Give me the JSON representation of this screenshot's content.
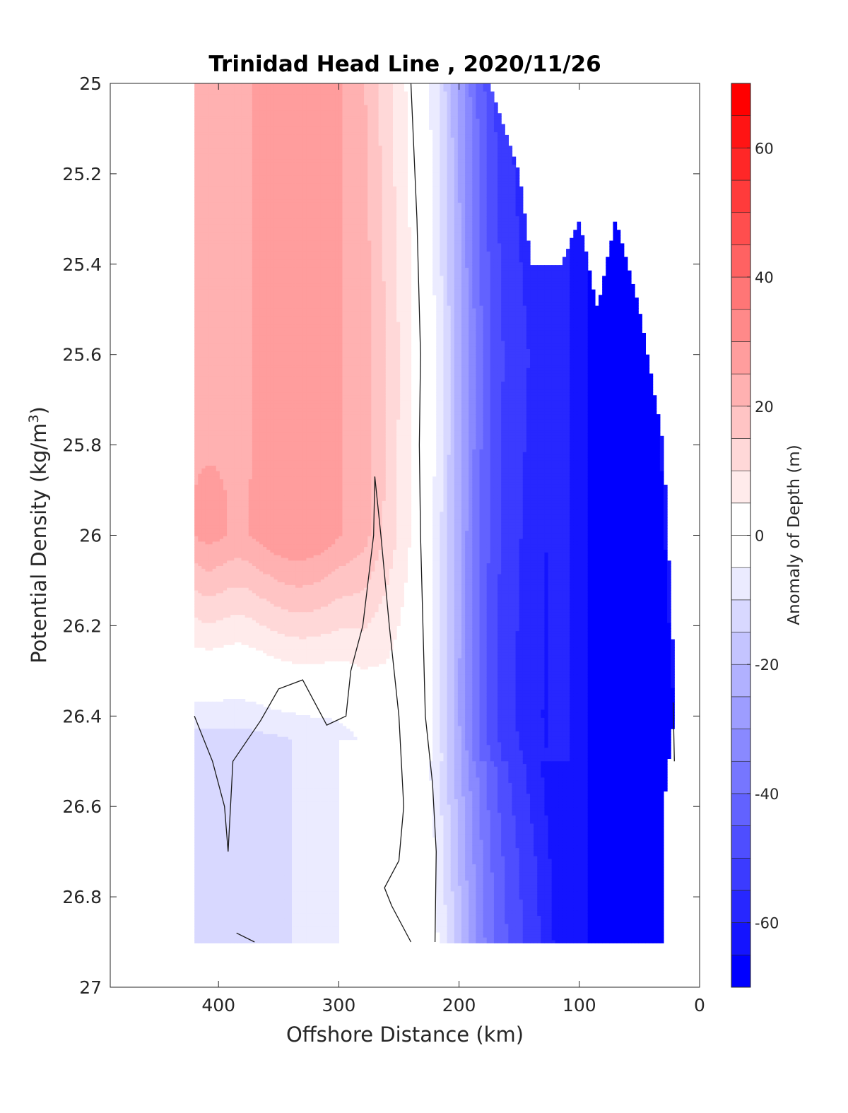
{
  "chart_data": {
    "type": "contour",
    "title": "Trinidad Head Line , 2020/11/26",
    "xlabel": "Offshore Distance (km)",
    "ylabel_main": "Potential Density (kg/m",
    "ylabel_sup": "3",
    "ylabel_close": ")",
    "xlim": [
      490,
      0
    ],
    "ylim": [
      25,
      27
    ],
    "x_reversed": true,
    "y_reversed": true,
    "xticks": [
      400,
      300,
      200,
      100,
      0
    ],
    "yticks": [
      25,
      25.2,
      25.4,
      25.6,
      25.8,
      26,
      26.2,
      26.4,
      26.6,
      26.8,
      27
    ],
    "ytick_labels": [
      "25",
      "25.2",
      "25.4",
      "25.6",
      "25.8",
      "26",
      "26.2",
      "26.4",
      "26.6",
      "26.8",
      "27"
    ],
    "colorbar": {
      "label": "Anomaly of Depth (m)",
      "range": [
        -70,
        70
      ],
      "step": 5,
      "ticks": [
        -60,
        -40,
        -20,
        0,
        20,
        40,
        60
      ]
    },
    "zero_contour_lines": [
      [
        [
          240,
          25
        ],
        [
          235,
          25.3
        ],
        [
          232,
          25.6
        ],
        [
          233,
          25.8
        ],
        [
          232,
          26
        ],
        [
          230,
          26.2
        ],
        [
          228,
          26.4
        ],
        [
          222,
          26.55
        ],
        [
          219,
          26.7
        ],
        [
          220,
          26.9
        ]
      ],
      [
        [
          270,
          25.87
        ],
        [
          271,
          26
        ],
        [
          280,
          26.2
        ],
        [
          290,
          26.3
        ],
        [
          294,
          26.4
        ],
        [
          310,
          26.42
        ],
        [
          330,
          26.32
        ],
        [
          350,
          26.34
        ],
        [
          365,
          26.41
        ],
        [
          388,
          26.5
        ],
        [
          390,
          26.6
        ],
        [
          392,
          26.7
        ],
        [
          395,
          26.6
        ],
        [
          405,
          26.5
        ],
        [
          420,
          26.4
        ]
      ],
      [
        [
          270,
          25.87
        ],
        [
          265,
          26
        ],
        [
          258,
          26.2
        ],
        [
          250,
          26.4
        ],
        [
          246,
          26.6
        ],
        [
          250,
          26.72
        ],
        [
          262,
          26.78
        ],
        [
          256,
          26.82
        ],
        [
          240,
          26.9
        ]
      ],
      [
        [
          370,
          26.9
        ],
        [
          385,
          26.88
        ]
      ],
      [
        [
          22,
          26.37
        ],
        [
          21,
          26.5
        ]
      ]
    ]
  }
}
